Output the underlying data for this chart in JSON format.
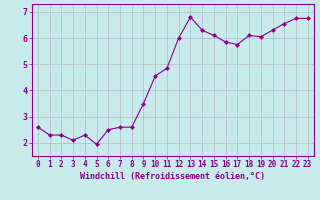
{
  "x": [
    0,
    1,
    2,
    3,
    4,
    5,
    6,
    7,
    8,
    9,
    10,
    11,
    12,
    13,
    14,
    15,
    16,
    17,
    18,
    19,
    20,
    21,
    22,
    23
  ],
  "y": [
    2.6,
    2.3,
    2.3,
    2.1,
    2.3,
    1.95,
    2.5,
    2.6,
    2.6,
    3.5,
    4.55,
    4.85,
    6.0,
    6.8,
    6.3,
    6.1,
    5.85,
    5.75,
    6.1,
    6.05,
    6.3,
    6.55,
    6.75,
    6.75
  ],
  "line_color": "#880088",
  "marker": "D",
  "marker_size": 2.0,
  "bg_color": "#c8eaea",
  "grid_color": "#b0b8cc",
  "axis_label_color": "#880088",
  "tick_label_color": "#880088",
  "xlabel": "Windchill (Refroidissement éolien,°C)",
  "xlabel_fontsize": 6.0,
  "tick_fontsize": 5.5,
  "ytick_fontsize": 6.0,
  "ylim": [
    1.5,
    7.3
  ],
  "xlim": [
    -0.5,
    23.5
  ],
  "yticks": [
    2,
    3,
    4,
    5,
    6,
    7
  ],
  "xticks": [
    0,
    1,
    2,
    3,
    4,
    5,
    6,
    7,
    8,
    9,
    10,
    11,
    12,
    13,
    14,
    15,
    16,
    17,
    18,
    19,
    20,
    21,
    22,
    23
  ]
}
